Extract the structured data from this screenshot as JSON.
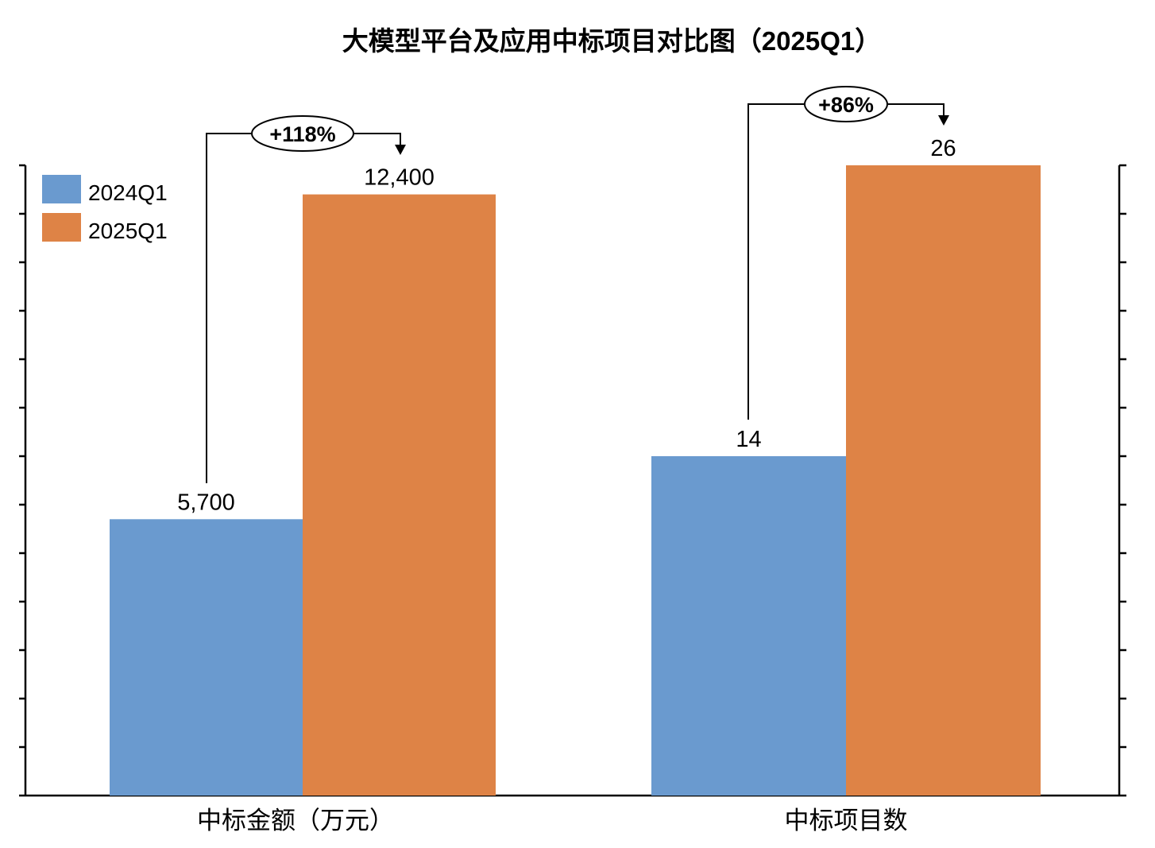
{
  "chart_data": {
    "type": "bar",
    "title": "大模型平台及应用中标项目对比图（2025Q1）",
    "categories": [
      "中标金额（万元）",
      "中标项目数"
    ],
    "series": [
      {
        "name": "2024Q1",
        "values": [
          5700,
          14
        ],
        "labels": [
          "5,700",
          "14"
        ],
        "color": "#6a9acf"
      },
      {
        "name": "2025Q1",
        "values": [
          12400,
          26
        ],
        "labels": [
          "12,400",
          "26"
        ],
        "color": "#de8346"
      }
    ],
    "axes": {
      "left": {
        "ylim": [
          0,
          13000
        ],
        "tick_step": 1000,
        "tick_labels_shown": false,
        "applies_to": "中标金额（万元）"
      },
      "right": {
        "ylim": [
          0,
          26
        ],
        "tick_step": 2,
        "tick_labels_shown": false,
        "applies_to": "中标项目数"
      }
    },
    "annotations": [
      "+118%",
      "+86%"
    ],
    "legend": "top-left",
    "grid": false
  }
}
